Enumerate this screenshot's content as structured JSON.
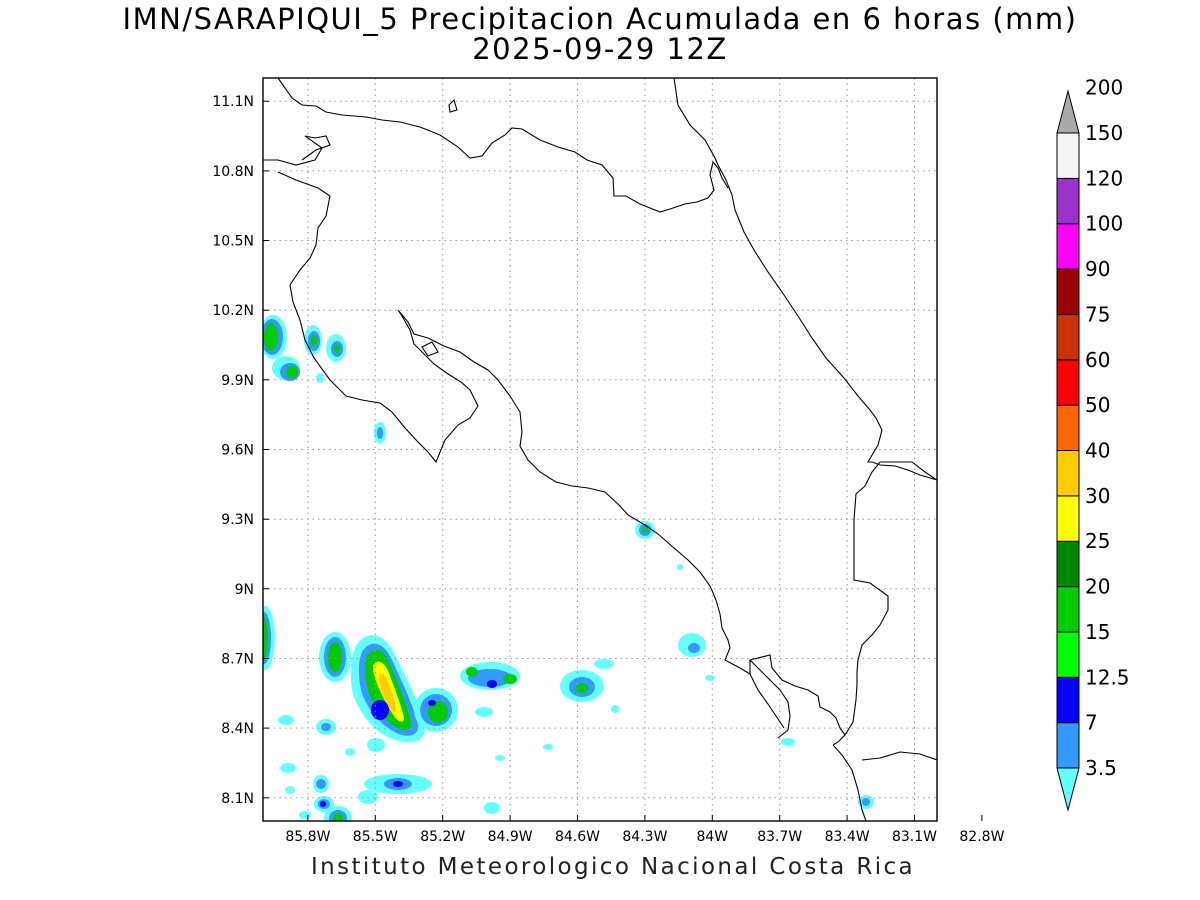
{
  "title": {
    "line1": "IMN/SARAPIQUI_5 Precipitacion Acumulada en 6 horas (mm)",
    "line2": "2025-09-29 12Z"
  },
  "footer": "Instituto Meteorologico Nacional Costa Rica",
  "map": {
    "lon_range": [
      -86.0,
      -83.0
    ],
    "lat_range": [
      8.0,
      11.2
    ],
    "x_ticks": [
      {
        "value": -85.8,
        "label": "85.8W"
      },
      {
        "value": -85.5,
        "label": "85.5W"
      },
      {
        "value": -85.2,
        "label": "85.2W"
      },
      {
        "value": -84.9,
        "label": "84.9W"
      },
      {
        "value": -84.6,
        "label": "84.6W"
      },
      {
        "value": -84.3,
        "label": "84.3W"
      },
      {
        "value": -84.0,
        "label": "84W"
      },
      {
        "value": -83.7,
        "label": "83.7W"
      },
      {
        "value": -83.4,
        "label": "83.4W"
      },
      {
        "value": -83.1,
        "label": "83.1W"
      },
      {
        "value": -82.8,
        "label": "82.8W"
      }
    ],
    "y_ticks": [
      {
        "value": 11.1,
        "label": "11.1N"
      },
      {
        "value": 10.8,
        "label": "10.8N"
      },
      {
        "value": 10.5,
        "label": "10.5N"
      },
      {
        "value": 10.2,
        "label": "10.2N"
      },
      {
        "value": 9.9,
        "label": "9.9N"
      },
      {
        "value": 9.6,
        "label": "9.6N"
      },
      {
        "value": 9.3,
        "label": "9.3N"
      },
      {
        "value": 9.0,
        "label": "9N"
      },
      {
        "value": 8.7,
        "label": "8.7N"
      },
      {
        "value": 8.4,
        "label": "8.4N"
      },
      {
        "value": 8.1,
        "label": "8.1N"
      }
    ],
    "grid": true
  },
  "colorbar": {
    "bins": [
      {
        "label": "3.5",
        "color": "#66ffff"
      },
      {
        "label": "7",
        "color": "#3399ff"
      },
      {
        "label": "12.5",
        "color": "#0000ff"
      },
      {
        "label": "15",
        "color": "#00ff00"
      },
      {
        "label": "20",
        "color": "#00cc00"
      },
      {
        "label": "25",
        "color": "#008800"
      },
      {
        "label": "30",
        "color": "#ffff00"
      },
      {
        "label": "40",
        "color": "#ffcc00"
      },
      {
        "label": "50",
        "color": "#ff6600"
      },
      {
        "label": "60",
        "color": "#ff0000"
      },
      {
        "label": "75",
        "color": "#cc3300"
      },
      {
        "label": "90",
        "color": "#990000"
      },
      {
        "label": "100",
        "color": "#ff00ff"
      },
      {
        "label": "120",
        "color": "#9933cc"
      },
      {
        "label": "150",
        "color": "#f5f5f5"
      },
      {
        "label": "200",
        "color": "#aaaaaa"
      }
    ]
  }
}
